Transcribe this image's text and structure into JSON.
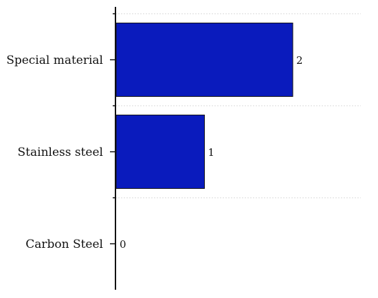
{
  "chart_data": {
    "type": "bar",
    "orientation": "horizontal",
    "categories": [
      "Special material",
      "Stainless steel",
      "Carbon Steel"
    ],
    "values": [
      2,
      1,
      0
    ],
    "data_labels": [
      "2",
      "1",
      "0"
    ],
    "title": "",
    "xlabel": "",
    "ylabel": "",
    "xlim": [
      0,
      2.85
    ],
    "grid": "dotted horizontal separators between categories",
    "legend": "none",
    "bar_color": "#0a1bbd",
    "bar_edge_color": "#111111",
    "axis_color": "#111111",
    "grid_color": "#d9d9d9"
  }
}
